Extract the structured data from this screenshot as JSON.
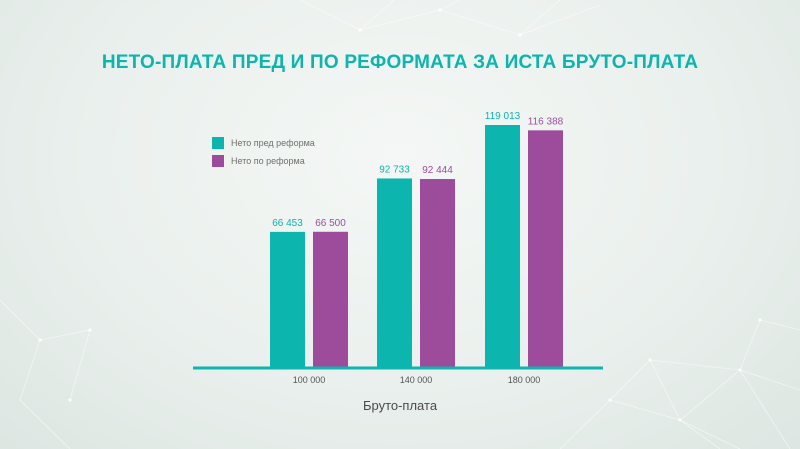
{
  "title": "НЕТО-ПЛАТА ПРЕД И ПО РЕФОРМАТА ЗА ИСТА БРУТО-ПЛАТА",
  "colors": {
    "accent": "#0cb5ae",
    "series_before": "#0cb5ae",
    "series_after": "#9c4c9b",
    "axis": "#0cb5ae"
  },
  "chart_data": {
    "type": "bar",
    "title": "НЕТО-ПЛАТА ПРЕД И ПО РЕФОРМАТА ЗА ИСТА БРУТО-ПЛАТА",
    "xlabel": "Бруто-плата",
    "ylabel": "",
    "categories": [
      "100 000",
      "140 000",
      "180 000"
    ],
    "series": [
      {
        "name": "Нето пред реформа",
        "color": "#0cb5ae",
        "values": [
          66453,
          92733,
          119013
        ],
        "labels": [
          "66 453",
          "92 733",
          "119 013"
        ]
      },
      {
        "name": "Нето по реформа",
        "color": "#9c4c9b",
        "values": [
          66500,
          92444,
          116388
        ],
        "labels": [
          "66 500",
          "92 444",
          "116 388"
        ]
      }
    ],
    "ylim": [
      0,
      120000
    ],
    "grid": false,
    "legend": "top-left"
  }
}
